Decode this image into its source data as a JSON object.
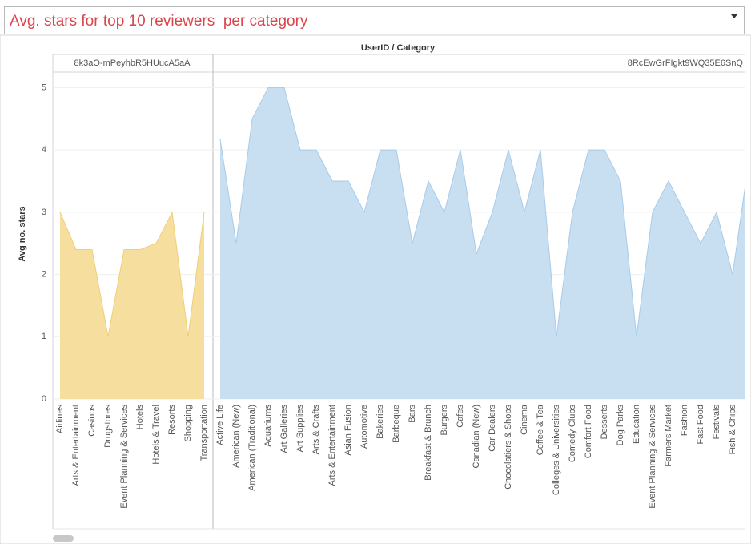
{
  "chart_data": {
    "type": "area",
    "title": "Avg. stars for top 10 reviewers  per category",
    "header": "UserID / Category",
    "ylabel": "Avg no. stars",
    "ylim": [
      0,
      5.25
    ],
    "yticks": [
      0,
      1,
      2,
      3,
      4,
      5
    ],
    "grid": true,
    "series": [
      {
        "name": "8k3aO-mPeyhbR5HUucA5aA",
        "color": "#f5dc9a",
        "categories": [
          "Airlines",
          "Arts & Entertainment",
          "Casinos",
          "Drugstores",
          "Event Planning & Services",
          "Hotels",
          "Hotels & Travel",
          "Resorts",
          "Shopping",
          "Transportation"
        ],
        "values": [
          3,
          2.4,
          2.4,
          1,
          2.4,
          2.4,
          2.5,
          3,
          1,
          3
        ]
      },
      {
        "name": "8RcEwGrFIgkt9WQ35E6SnQ",
        "color": "#c5dcf0",
        "categories": [
          "Active Life",
          "American (New)",
          "American (Traditional)",
          "Aquariums",
          "Art Galleries",
          "Art Supplies",
          "Arts & Crafts",
          "Arts & Entertainment",
          "Asian Fusion",
          "Automotive",
          "Bakeries",
          "Barbeque",
          "Bars",
          "Breakfast & Brunch",
          "Burgers",
          "Cafes",
          "Canadian (New)",
          "Car Dealers",
          "Chocolatiers & Shops",
          "Cinema",
          "Coffee & Tea",
          "Colleges & Universities",
          "Comedy Clubs",
          "Comfort Food",
          "Desserts",
          "Dog Parks",
          "Education",
          "Event Planning & Services",
          "Farmers Market",
          "Fashion",
          "Fast Food",
          "Festivals",
          "Fish & Chips",
          null
        ],
        "values": [
          4.17,
          2.5,
          4.5,
          5,
          5,
          4,
          4,
          3.5,
          3.5,
          3,
          4,
          4,
          2.5,
          3.5,
          3,
          4,
          2.33,
          3,
          4,
          3,
          4,
          1,
          3,
          4,
          4,
          3.5,
          1,
          3,
          3.5,
          3,
          2.5,
          3,
          2,
          3.8
        ]
      }
    ]
  }
}
